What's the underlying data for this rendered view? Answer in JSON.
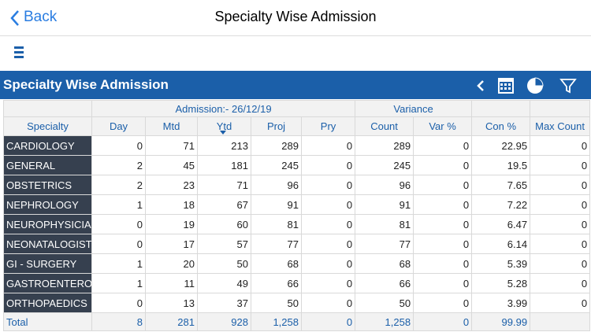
{
  "nav": {
    "back": "Back",
    "title": "Specialty Wise Admission"
  },
  "panel": {
    "title": "Specialty Wise Admission"
  },
  "table": {
    "group_headers": [
      "Admission:- 26/12/19",
      "Variance"
    ],
    "columns": [
      "Specialty",
      "Day",
      "Mtd",
      "Ytd",
      "Proj",
      "Pry",
      "Count",
      "Var %",
      "Con %",
      "Max Count"
    ],
    "rows": [
      [
        "CARDIOLOGY",
        0,
        71,
        213,
        289,
        0,
        289,
        0,
        22.95,
        0
      ],
      [
        "GENERAL",
        2,
        45,
        181,
        245,
        0,
        245,
        0,
        19.5,
        0
      ],
      [
        "OBSTETRICS",
        2,
        23,
        71,
        96,
        0,
        96,
        0,
        7.65,
        0
      ],
      [
        "NEPHROLOGY",
        1,
        18,
        67,
        91,
        0,
        91,
        0,
        7.22,
        0
      ],
      [
        "NEUROPHYSICIAN",
        0,
        19,
        60,
        81,
        0,
        81,
        0,
        6.47,
        0
      ],
      [
        "NEONATALOGIST",
        0,
        17,
        57,
        77,
        0,
        77,
        0,
        6.14,
        0
      ],
      [
        "GI - SURGERY",
        1,
        20,
        50,
        68,
        0,
        68,
        0,
        5.39,
        0
      ],
      [
        "GASTROENTEROL",
        1,
        11,
        49,
        66,
        0,
        66,
        0,
        5.28,
        0
      ],
      [
        "ORTHOPAEDICS",
        0,
        13,
        37,
        50,
        0,
        50,
        0,
        3.99,
        0
      ]
    ],
    "total": [
      "Total",
      8,
      281,
      928,
      "1,258",
      0,
      "1,258",
      0,
      99.99
    ]
  }
}
